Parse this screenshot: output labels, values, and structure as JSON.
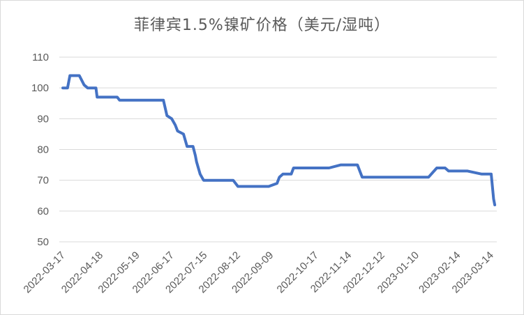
{
  "chart_data": {
    "type": "line",
    "title": "菲律宾1.5%镍矿价格（美元/湿吨）",
    "xlabel": "",
    "ylabel": "",
    "ylim": [
      50,
      110
    ],
    "yticks": [
      "50",
      "60",
      "70",
      "80",
      "90",
      "100",
      "110"
    ],
    "x_tick_labels": [
      "2022-03-17",
      "2022-04-18",
      "2022-05-19",
      "2022-06-17",
      "2022-07-15",
      "2022-08-12",
      "2022-09-09",
      "2022-10-17",
      "2022-11-14",
      "2022-12-12",
      "2023-01-10",
      "2023-02-14",
      "2023-03-14"
    ],
    "grid": true,
    "legend": "none",
    "series": [
      {
        "color": "#4472C4",
        "x": [
          "2022-03-17",
          "2022-03-21",
          "2022-03-23",
          "2022-03-31",
          "2022-04-04",
          "2022-04-07",
          "2022-04-14",
          "2022-04-15",
          "2022-04-22",
          "2022-05-02",
          "2022-05-04",
          "2022-05-13",
          "2022-05-24",
          "2022-05-26",
          "2022-06-10",
          "2022-06-13",
          "2022-06-17",
          "2022-06-20",
          "2022-06-22",
          "2022-06-27",
          "2022-06-30",
          "2022-07-05",
          "2022-07-07",
          "2022-07-08",
          "2022-07-11",
          "2022-07-14",
          "2022-07-22",
          "2022-08-05",
          "2022-08-08",
          "2022-08-12",
          "2022-08-22",
          "2022-09-07",
          "2022-09-14",
          "2022-09-16",
          "2022-09-19",
          "2022-09-22",
          "2022-09-26",
          "2022-09-28",
          "2022-10-03",
          "2022-10-10",
          "2022-10-12",
          "2022-10-17",
          "2022-10-24",
          "2022-10-28",
          "2022-11-07",
          "2022-11-10",
          "2022-11-14",
          "2022-11-17",
          "2022-11-21",
          "2022-11-25",
          "2022-12-05",
          "2022-12-12",
          "2022-12-26",
          "2023-01-04",
          "2023-01-10",
          "2023-01-16",
          "2023-01-20",
          "2023-01-27",
          "2023-02-03",
          "2023-02-06",
          "2023-02-14",
          "2023-02-22",
          "2023-03-06",
          "2023-03-13",
          "2023-03-14",
          "2023-03-16",
          "2023-03-17"
        ],
        "values": [
          100,
          100,
          104,
          104,
          101,
          100,
          100,
          97,
          97,
          97,
          96,
          96,
          96,
          96,
          96,
          91,
          90,
          88,
          86,
          85,
          81,
          81,
          78,
          76,
          72,
          70,
          70,
          70,
          70,
          68,
          68,
          68,
          69,
          71,
          72,
          72,
          72,
          74,
          74,
          74,
          74,
          74,
          74,
          74,
          75,
          75,
          75,
          75,
          75,
          71,
          71,
          71,
          71,
          71,
          71,
          71,
          71,
          74,
          74,
          73,
          73,
          73,
          72,
          72,
          72,
          64,
          62
        ]
      }
    ]
  }
}
